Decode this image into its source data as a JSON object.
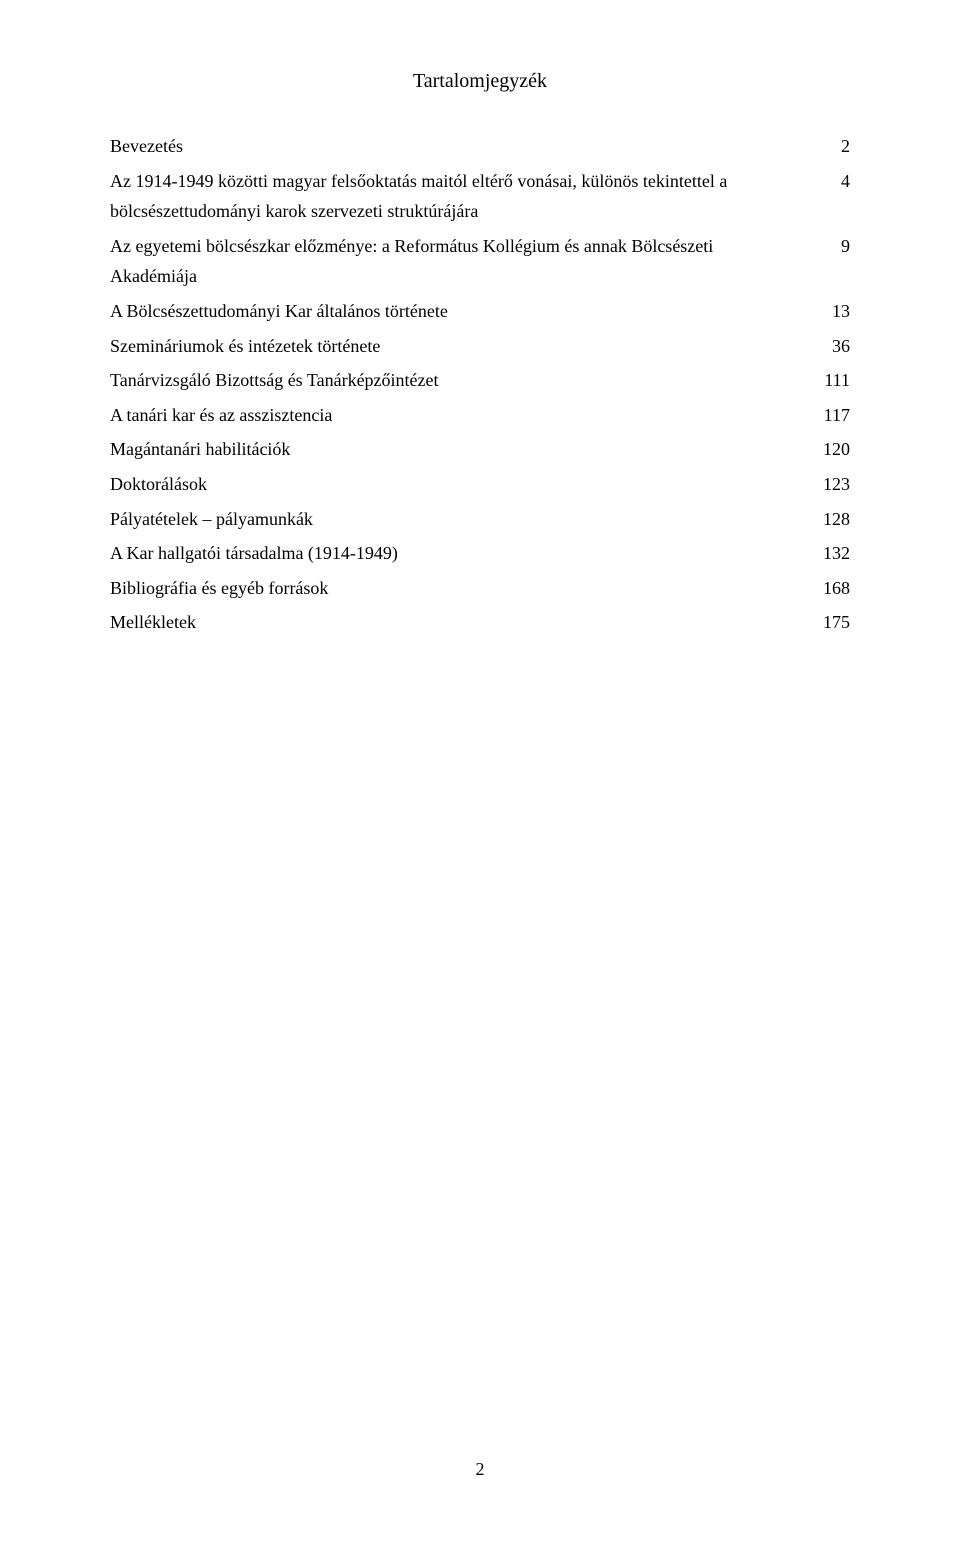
{
  "page": {
    "title": "Tartalomjegyzék",
    "page_number": "2",
    "background_color": "#ffffff",
    "text_color": "#000000",
    "font_family": "Times New Roman",
    "title_fontsize": 20,
    "body_fontsize": 18,
    "line_height": 1.7
  },
  "toc": {
    "entries": [
      {
        "label": "Bevezetés",
        "page": "2"
      },
      {
        "label": "Az 1914-1949 közötti magyar felsőoktatás maitól eltérő vonásai, különös tekintettel a bölcsészettudományi karok szervezeti struktúrájára",
        "page": "4"
      },
      {
        "label": "Az egyetemi bölcsészkar előzménye: a Református Kollégium és annak Bölcsészeti Akadémiája",
        "page": "9"
      },
      {
        "label": "A Bölcsészettudományi Kar általános története",
        "page": "13"
      },
      {
        "label": "Szemináriumok és intézetek története",
        "page": "36"
      },
      {
        "label": "Tanárvizsgáló Bizottság és Tanárképzőintézet",
        "page": "111"
      },
      {
        "label": "A tanári kar és az asszisztencia",
        "page": "117"
      },
      {
        "label": "Magántanári habilitációk",
        "page": "120"
      },
      {
        "label": "Doktorálások",
        "page": "123"
      },
      {
        "label": "Pályatételek – pályamunkák",
        "page": "128"
      },
      {
        "label": "A Kar hallgatói társadalma (1914-1949)",
        "page": "132"
      },
      {
        "label": "Bibliográfia és egyéb források",
        "page": "168"
      },
      {
        "label": "Mellékletek",
        "page": "175"
      }
    ]
  }
}
